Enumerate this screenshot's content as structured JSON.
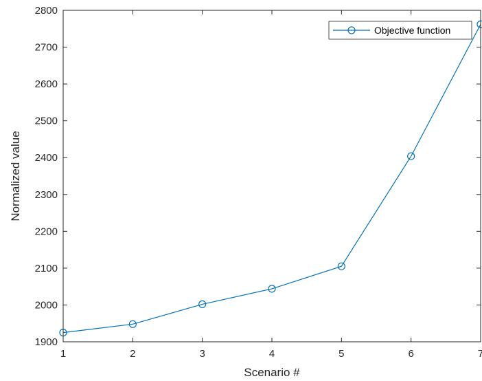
{
  "chart_data": {
    "type": "line",
    "title": "",
    "xlabel": "Scenario #",
    "ylabel": "Normalized value",
    "xlim": [
      1,
      7
    ],
    "ylim": [
      1900,
      2800
    ],
    "xticks": [
      1,
      2,
      3,
      4,
      5,
      6,
      7
    ],
    "yticks": [
      1900,
      2000,
      2100,
      2200,
      2300,
      2400,
      2500,
      2600,
      2700,
      2800
    ],
    "grid": false,
    "legend_position": "top-right",
    "series": [
      {
        "name": "Objective function",
        "color": "#0072BD",
        "marker": "circle",
        "x": [
          1,
          2,
          3,
          4,
          5,
          6,
          7
        ],
        "y": [
          1925,
          1948,
          2002,
          2044,
          2105,
          2404,
          2762
        ]
      }
    ]
  }
}
